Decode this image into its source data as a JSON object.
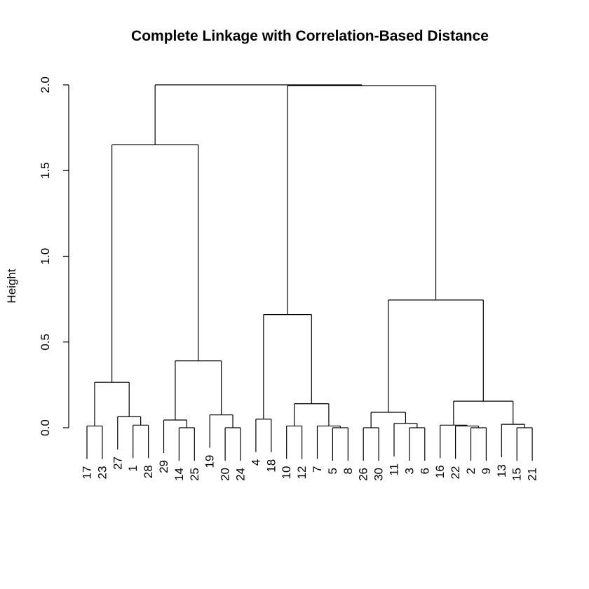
{
  "chart_data": {
    "type": "dendrogram",
    "title": "Complete Linkage with Correlation-Based Distance",
    "ylabel": "Height",
    "xlabel": "",
    "ylim": [
      0,
      2.0
    ],
    "yticks": [
      "0.0",
      "0.5",
      "1.0",
      "1.5",
      "2.0"
    ],
    "leaf_order": [
      "17",
      "23",
      "27",
      "1",
      "28",
      "29",
      "14",
      "25",
      "19",
      "20",
      "24",
      "4",
      "18",
      "10",
      "12",
      "7",
      "5",
      "8",
      "26",
      "30",
      "11",
      "3",
      "6",
      "16",
      "22",
      "2",
      "9",
      "13",
      "15",
      "21"
    ],
    "merges": [
      {
        "id": "a",
        "left": "17",
        "right": "23",
        "height": 0.01
      },
      {
        "id": "b",
        "left": "1",
        "right": "28",
        "height": 0.015
      },
      {
        "id": "c",
        "left": "27",
        "right": "b",
        "height": 0.065
      },
      {
        "id": "d",
        "left": "a",
        "right": "c",
        "height": 0.265
      },
      {
        "id": "e",
        "left": "14",
        "right": "25",
        "height": 0.0
      },
      {
        "id": "f",
        "left": "29",
        "right": "e",
        "height": 0.045
      },
      {
        "id": "g",
        "left": "20",
        "right": "24",
        "height": 0.0
      },
      {
        "id": "h",
        "left": "19",
        "right": "g",
        "height": 0.075
      },
      {
        "id": "i",
        "left": "f",
        "right": "h",
        "height": 0.39
      },
      {
        "id": "j",
        "left": "d",
        "right": "i",
        "height": 1.65
      },
      {
        "id": "k",
        "left": "4",
        "right": "18",
        "height": 0.05
      },
      {
        "id": "l",
        "left": "10",
        "right": "12",
        "height": 0.01
      },
      {
        "id": "m",
        "left": "5",
        "right": "8",
        "height": 0.0
      },
      {
        "id": "n",
        "left": "7",
        "right": "m",
        "height": 0.01
      },
      {
        "id": "o",
        "left": "l",
        "right": "n",
        "height": 0.14
      },
      {
        "id": "p",
        "left": "k",
        "right": "o",
        "height": 0.66
      },
      {
        "id": "q",
        "left": "26",
        "right": "30",
        "height": 0.0
      },
      {
        "id": "r",
        "left": "3",
        "right": "6",
        "height": 0.0
      },
      {
        "id": "s",
        "left": "11",
        "right": "r",
        "height": 0.025
      },
      {
        "id": "t",
        "left": "q",
        "right": "s",
        "height": 0.09
      },
      {
        "id": "u",
        "left": "2",
        "right": "9",
        "height": 0.0
      },
      {
        "id": "v",
        "left": "22",
        "right": "u",
        "height": 0.01
      },
      {
        "id": "w",
        "left": "16",
        "right": "v",
        "height": 0.015
      },
      {
        "id": "x",
        "left": "15",
        "right": "21",
        "height": 0.0
      },
      {
        "id": "y",
        "left": "13",
        "right": "x",
        "height": 0.02
      },
      {
        "id": "z",
        "left": "w",
        "right": "y",
        "height": 0.155
      },
      {
        "id": "aa",
        "left": "t",
        "right": "z",
        "height": 0.745
      },
      {
        "id": "ab",
        "left": "p",
        "right": "aa",
        "height": 1.995
      },
      {
        "id": "root",
        "left": "j",
        "right": "ab",
        "height": 2.0
      }
    ]
  }
}
